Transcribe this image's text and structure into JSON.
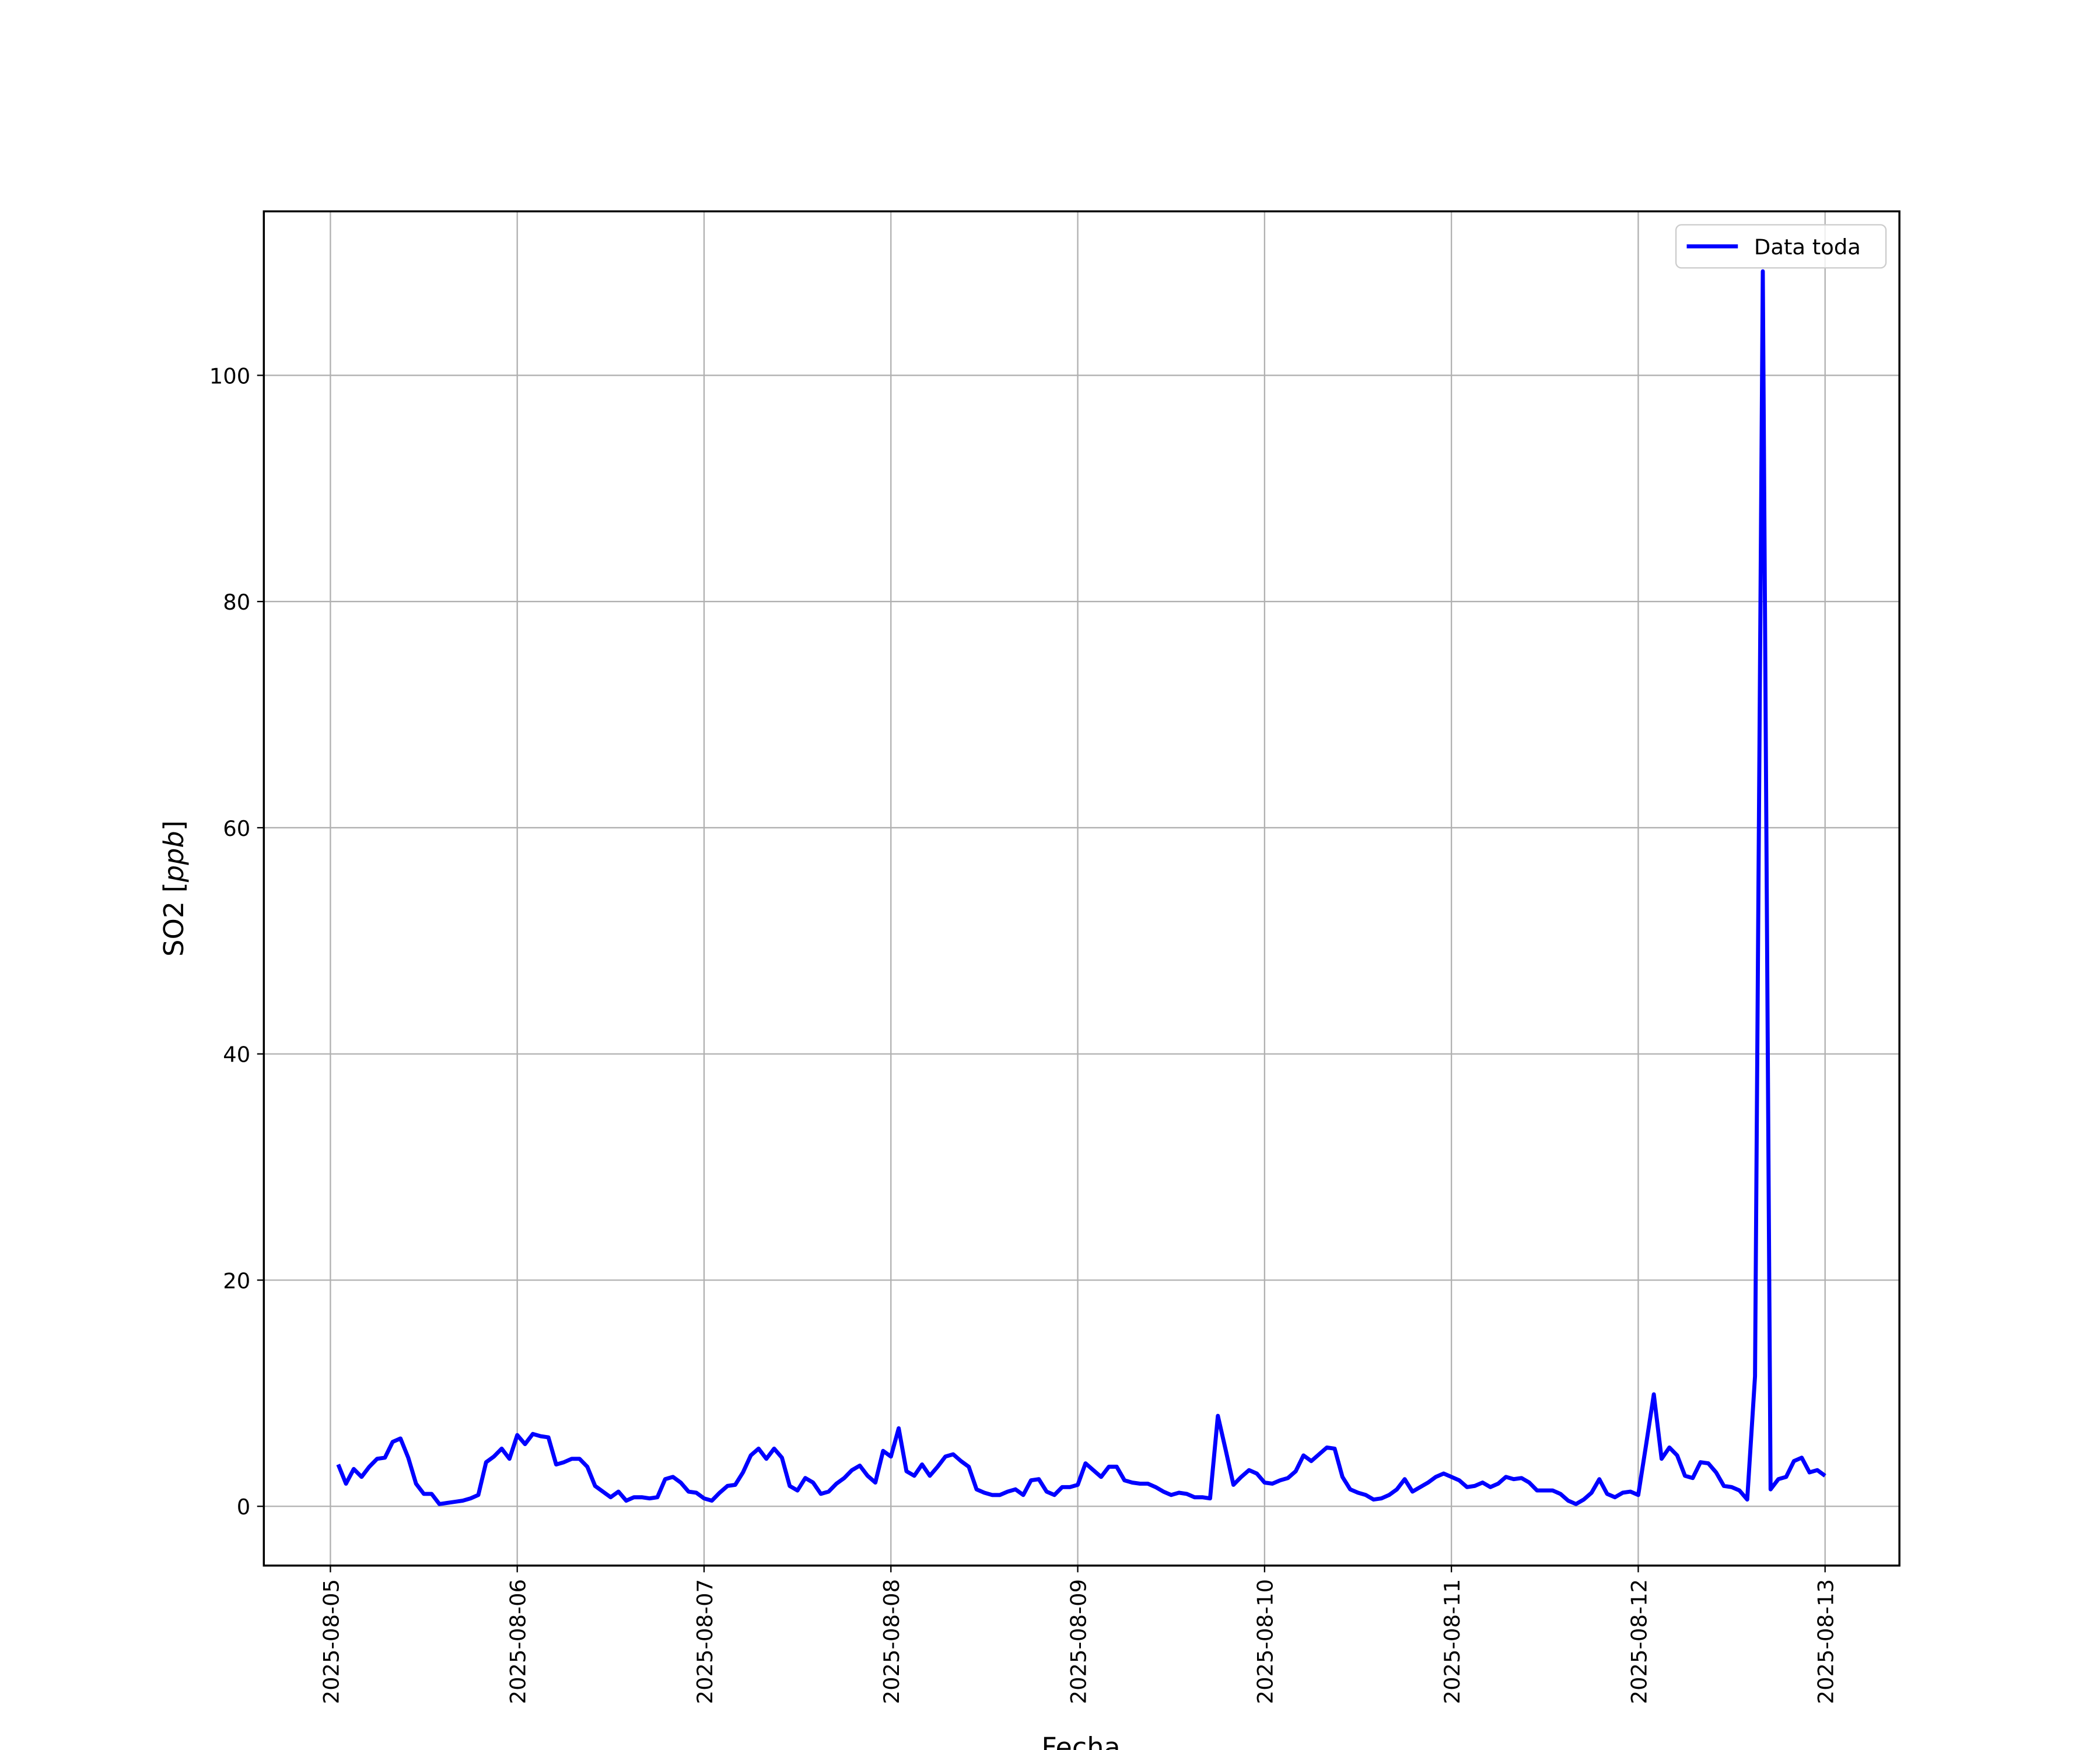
{
  "chart_data": {
    "type": "line",
    "xlabel": "Fecha",
    "ylabel": "SO2 [ppb]",
    "x": [
      "2025-08-05 01:00",
      "2025-08-05 02:00",
      "2025-08-05 03:00",
      "2025-08-05 04:00",
      "2025-08-05 05:00",
      "2025-08-05 06:00",
      "2025-08-05 07:00",
      "2025-08-05 08:00",
      "2025-08-05 09:00",
      "2025-08-05 10:00",
      "2025-08-05 11:00",
      "2025-08-05 12:00",
      "2025-08-05 13:00",
      "2025-08-05 14:00",
      "2025-08-05 15:00",
      "2025-08-05 16:00",
      "2025-08-05 17:00",
      "2025-08-05 18:00",
      "2025-08-05 19:00",
      "2025-08-05 20:00",
      "2025-08-05 21:00",
      "2025-08-05 22:00",
      "2025-08-05 23:00",
      "2025-08-06 00:00",
      "2025-08-06 01:00",
      "2025-08-06 02:00",
      "2025-08-06 03:00",
      "2025-08-06 04:00",
      "2025-08-06 05:00",
      "2025-08-06 06:00",
      "2025-08-06 07:00",
      "2025-08-06 08:00",
      "2025-08-06 09:00",
      "2025-08-06 10:00",
      "2025-08-06 11:00",
      "2025-08-06 12:00",
      "2025-08-06 13:00",
      "2025-08-06 14:00",
      "2025-08-06 15:00",
      "2025-08-06 16:00",
      "2025-08-06 17:00",
      "2025-08-06 18:00",
      "2025-08-06 19:00",
      "2025-08-06 20:00",
      "2025-08-06 21:00",
      "2025-08-06 22:00",
      "2025-08-06 23:00",
      "2025-08-07 00:00",
      "2025-08-07 01:00",
      "2025-08-07 02:00",
      "2025-08-07 03:00",
      "2025-08-07 04:00",
      "2025-08-07 05:00",
      "2025-08-07 06:00",
      "2025-08-07 07:00",
      "2025-08-07 08:00",
      "2025-08-07 09:00",
      "2025-08-07 10:00",
      "2025-08-07 11:00",
      "2025-08-07 12:00",
      "2025-08-07 13:00",
      "2025-08-07 14:00",
      "2025-08-07 15:00",
      "2025-08-07 16:00",
      "2025-08-07 17:00",
      "2025-08-07 18:00",
      "2025-08-07 19:00",
      "2025-08-07 20:00",
      "2025-08-07 21:00",
      "2025-08-07 22:00",
      "2025-08-07 23:00",
      "2025-08-08 00:00",
      "2025-08-08 01:00",
      "2025-08-08 02:00",
      "2025-08-08 03:00",
      "2025-08-08 04:00",
      "2025-08-08 05:00",
      "2025-08-08 06:00",
      "2025-08-08 07:00",
      "2025-08-08 08:00",
      "2025-08-08 09:00",
      "2025-08-08 10:00",
      "2025-08-08 11:00",
      "2025-08-08 12:00",
      "2025-08-08 13:00",
      "2025-08-08 14:00",
      "2025-08-08 15:00",
      "2025-08-08 16:00",
      "2025-08-08 17:00",
      "2025-08-08 18:00",
      "2025-08-08 19:00",
      "2025-08-08 20:00",
      "2025-08-08 21:00",
      "2025-08-08 22:00",
      "2025-08-08 23:00",
      "2025-08-09 00:00",
      "2025-08-09 01:00",
      "2025-08-09 02:00",
      "2025-08-09 03:00",
      "2025-08-09 04:00",
      "2025-08-09 05:00",
      "2025-08-09 06:00",
      "2025-08-09 07:00",
      "2025-08-09 08:00",
      "2025-08-09 09:00",
      "2025-08-09 10:00",
      "2025-08-09 11:00",
      "2025-08-09 12:00",
      "2025-08-09 13:00",
      "2025-08-09 14:00",
      "2025-08-09 15:00",
      "2025-08-09 16:00",
      "2025-08-09 17:00",
      "2025-08-09 18:00",
      "2025-08-09 19:00",
      "2025-08-09 20:00",
      "2025-08-09 21:00",
      "2025-08-09 22:00",
      "2025-08-09 23:00",
      "2025-08-10 00:00",
      "2025-08-10 01:00",
      "2025-08-10 02:00",
      "2025-08-10 03:00",
      "2025-08-10 04:00",
      "2025-08-10 05:00",
      "2025-08-10 06:00",
      "2025-08-10 07:00",
      "2025-08-10 08:00",
      "2025-08-10 09:00",
      "2025-08-10 10:00",
      "2025-08-10 11:00",
      "2025-08-10 12:00",
      "2025-08-10 13:00",
      "2025-08-10 14:00",
      "2025-08-10 15:00",
      "2025-08-10 16:00",
      "2025-08-10 17:00",
      "2025-08-10 18:00",
      "2025-08-10 19:00",
      "2025-08-10 20:00",
      "2025-08-10 21:00",
      "2025-08-10 22:00",
      "2025-08-10 23:00",
      "2025-08-11 00:00",
      "2025-08-11 01:00",
      "2025-08-11 02:00",
      "2025-08-11 03:00",
      "2025-08-11 04:00",
      "2025-08-11 05:00",
      "2025-08-11 06:00",
      "2025-08-11 07:00",
      "2025-08-11 08:00",
      "2025-08-11 09:00",
      "2025-08-11 10:00",
      "2025-08-11 11:00",
      "2025-08-11 12:00",
      "2025-08-11 13:00",
      "2025-08-11 14:00",
      "2025-08-11 15:00",
      "2025-08-11 16:00",
      "2025-08-11 17:00",
      "2025-08-11 18:00",
      "2025-08-11 19:00",
      "2025-08-11 20:00",
      "2025-08-11 21:00",
      "2025-08-11 22:00",
      "2025-08-11 23:00",
      "2025-08-12 00:00",
      "2025-08-12 01:00",
      "2025-08-12 02:00",
      "2025-08-12 03:00",
      "2025-08-12 04:00",
      "2025-08-12 05:00",
      "2025-08-12 06:00",
      "2025-08-12 07:00",
      "2025-08-12 08:00",
      "2025-08-12 09:00",
      "2025-08-12 10:00",
      "2025-08-12 11:00",
      "2025-08-12 12:00",
      "2025-08-12 13:00",
      "2025-08-12 14:00",
      "2025-08-12 15:00",
      "2025-08-12 16:00",
      "2025-08-12 17:00",
      "2025-08-12 18:00",
      "2025-08-12 19:00",
      "2025-08-12 20:00",
      "2025-08-12 21:00",
      "2025-08-12 22:00",
      "2025-08-12 23:00",
      "2025-08-13 00:00"
    ],
    "series": [
      {
        "name": "Data toda",
        "color": "#0000ff",
        "values": [
          3.7,
          2.0,
          3.3,
          2.6,
          3.5,
          4.2,
          4.3,
          5.7,
          6.0,
          4.3,
          2.0,
          1.1,
          1.1,
          0.2,
          0.3,
          0.4,
          0.5,
          0.7,
          1.0,
          3.9,
          4.4,
          5.1,
          4.2,
          6.3,
          5.5,
          6.4,
          6.2,
          6.1,
          3.7,
          3.9,
          4.2,
          4.2,
          3.5,
          1.8,
          1.3,
          0.8,
          1.3,
          0.5,
          0.8,
          0.8,
          0.7,
          0.8,
          2.4,
          2.6,
          2.1,
          1.3,
          1.2,
          0.7,
          0.5,
          1.2,
          1.8,
          1.9,
          3.0,
          4.5,
          5.1,
          4.2,
          5.1,
          4.3,
          1.8,
          1.4,
          2.5,
          2.1,
          1.1,
          1.3,
          2.0,
          2.5,
          3.2,
          3.6,
          2.7,
          2.1,
          4.9,
          4.4,
          6.9,
          3.1,
          2.7,
          3.7,
          2.7,
          3.5,
          4.4,
          4.6,
          4.0,
          3.5,
          1.5,
          1.2,
          1.0,
          1.0,
          1.3,
          1.5,
          1.0,
          2.3,
          2.4,
          1.3,
          1.0,
          1.7,
          1.7,
          1.9,
          3.8,
          3.2,
          2.6,
          3.5,
          3.5,
          2.3,
          2.1,
          2.0,
          2.0,
          1.7,
          1.3,
          1.0,
          1.2,
          1.1,
          0.8,
          0.8,
          0.7,
          8.0,
          5.0,
          1.9,
          2.6,
          3.2,
          2.9,
          2.1,
          2.0,
          2.3,
          2.5,
          3.1,
          4.5,
          4.0,
          4.6,
          5.2,
          5.1,
          2.6,
          1.5,
          1.2,
          1.0,
          0.6,
          0.7,
          1.0,
          1.5,
          2.4,
          1.3,
          1.7,
          2.1,
          2.6,
          2.9,
          2.6,
          2.3,
          1.7,
          1.8,
          2.1,
          1.7,
          2.0,
          2.6,
          2.4,
          2.5,
          2.1,
          1.4,
          1.4,
          1.4,
          1.1,
          0.5,
          0.2,
          0.6,
          1.2,
          2.4,
          1.1,
          0.8,
          1.2,
          1.3,
          1.0,
          5.4,
          9.9,
          4.2,
          5.2,
          4.5,
          2.7,
          2.5,
          3.9,
          3.8,
          3.0,
          1.8,
          1.7,
          1.4,
          0.6,
          11.5,
          109.2,
          1.5,
          2.4,
          2.6,
          4.0,
          4.3,
          3.0,
          3.2,
          2.7
        ]
      }
    ],
    "xlim": [
      "2025-08-04 15:27",
      "2025-08-13 09:33"
    ],
    "xticks": [
      "2025-08-05",
      "2025-08-06",
      "2025-08-07",
      "2025-08-08",
      "2025-08-09",
      "2025-08-10",
      "2025-08-11",
      "2025-08-12",
      "2025-08-13"
    ],
    "ylim": [
      -5.24,
      114.5
    ],
    "yticks": [
      0,
      20,
      40,
      60,
      80,
      100
    ],
    "grid": true,
    "legend": "upper right"
  }
}
